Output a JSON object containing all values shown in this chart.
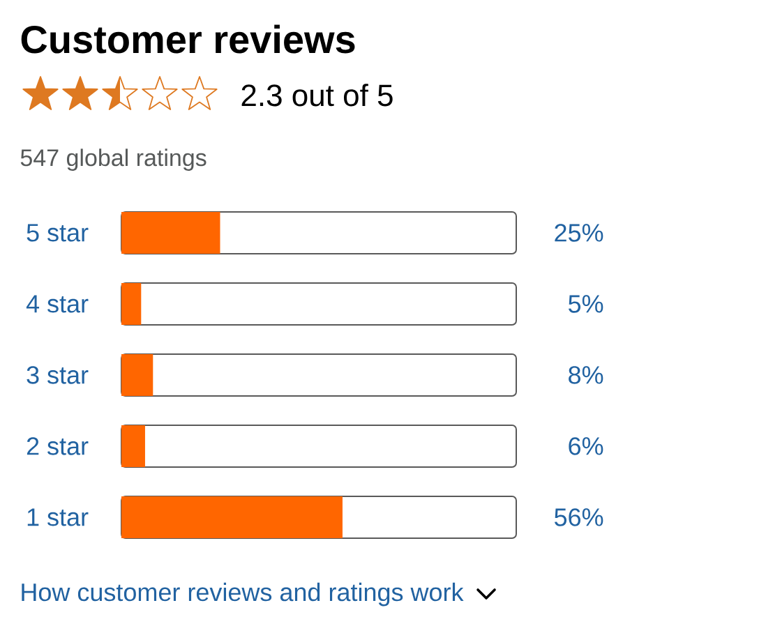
{
  "chart_data": {
    "type": "bar",
    "orientation": "horizontal",
    "title": "Customer reviews",
    "subtitle": "2.3 out of 5",
    "categories": [
      "5 star",
      "4 star",
      "3 star",
      "2 star",
      "1 star"
    ],
    "values": [
      25,
      5,
      8,
      6,
      56
    ],
    "value_labels": [
      "25%",
      "5%",
      "8%",
      "6%",
      "56%"
    ],
    "color": "#ff6600",
    "xlim": [
      0,
      100
    ],
    "tick_labels": "y",
    "annotations": [
      "547 global ratings",
      "How customer reviews and ratings work"
    ]
  }
}
